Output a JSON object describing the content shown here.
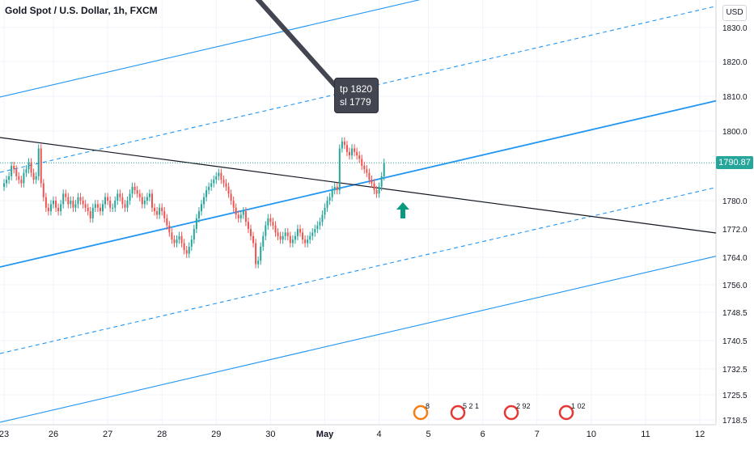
{
  "header": {
    "title": "Gold Spot / U.S. Dollar, 1h, FXCM",
    "currency": "USD"
  },
  "last_price_label": "1790.87",
  "annotation": {
    "line1": "tp 1820",
    "line2": "sl 1779"
  },
  "events": [
    {
      "label": "8",
      "type": "other"
    },
    {
      "label": "5 2 1",
      "type": "us"
    },
    {
      "label": "2 92",
      "type": "mixed"
    },
    {
      "label": "1 02",
      "type": "us"
    }
  ],
  "colors": {
    "up": "#26a69a",
    "down": "#ef5350",
    "channel": "#2196f3",
    "trend": "#131722",
    "grid": "#f0f3fa"
  },
  "chart_data": {
    "type": "candlestick",
    "symbol": "Gold Spot / U.S. Dollar",
    "interval": "1h",
    "source": "FXCM",
    "y_ticks": [
      1830.0,
      1820.0,
      1810.0,
      1800.0,
      1780.0,
      1772.0,
      1764.0,
      1756.0,
      1748.5,
      1740.5,
      1732.5,
      1725.5,
      1718.5
    ],
    "x_ticks": [
      "23",
      "26",
      "27",
      "28",
      "29",
      "30",
      "May",
      "4",
      "5",
      "6",
      "7",
      "10",
      "11",
      "12"
    ],
    "x_tick_index": [
      0,
      20,
      42,
      64,
      86,
      108,
      130,
      152,
      172,
      194,
      216,
      238,
      260,
      282
    ],
    "last_price": 1790.87,
    "closes": [
      1785,
      1786,
      1787,
      1790,
      1789,
      1787,
      1786,
      1785,
      1788,
      1789,
      1791,
      1788,
      1786,
      1787,
      1795,
      1785,
      1781,
      1778,
      1777,
      1779,
      1780,
      1778,
      1777,
      1779,
      1782,
      1781,
      1779,
      1780,
      1778,
      1779,
      1781,
      1780,
      1779,
      1778,
      1777,
      1775,
      1778,
      1779,
      1778,
      1777,
      1779,
      1781,
      1780,
      1778,
      1778,
      1780,
      1782,
      1781,
      1779,
      1778,
      1780,
      1782,
      1784,
      1783,
      1782,
      1781,
      1779,
      1780,
      1781,
      1782,
      1778,
      1777,
      1776,
      1778,
      1777,
      1775,
      1773,
      1771,
      1769,
      1768,
      1769,
      1770,
      1768,
      1766,
      1765,
      1767,
      1769,
      1772,
      1775,
      1777,
      1779,
      1781,
      1783,
      1784,
      1785,
      1786,
      1787,
      1788,
      1786,
      1785,
      1784,
      1782,
      1780,
      1778,
      1776,
      1775,
      1776,
      1777,
      1774,
      1772,
      1770,
      1768,
      1762,
      1763,
      1767,
      1770,
      1773,
      1775,
      1774,
      1773,
      1771,
      1770,
      1769,
      1770,
      1771,
      1770,
      1768,
      1769,
      1770,
      1772,
      1771,
      1769,
      1768,
      1769,
      1770,
      1771,
      1772,
      1773,
      1774,
      1776,
      1778,
      1780,
      1781,
      1783,
      1784,
      1783,
      1795,
      1797,
      1796,
      1794,
      1793,
      1795,
      1794,
      1793,
      1792,
      1790,
      1789,
      1788,
      1786,
      1785,
      1783,
      1782,
      1784,
      1787,
      1790.87
    ],
    "channel_lines": [
      {
        "style": "solid",
        "role": "upper-outer"
      },
      {
        "style": "dashed",
        "role": "upper-mid"
      },
      {
        "style": "solid",
        "role": "middle"
      },
      {
        "style": "dashed",
        "role": "lower-mid"
      },
      {
        "style": "solid",
        "role": "lower-outer"
      }
    ],
    "trend_line": {
      "style": "solid",
      "color": "#131722"
    }
  }
}
